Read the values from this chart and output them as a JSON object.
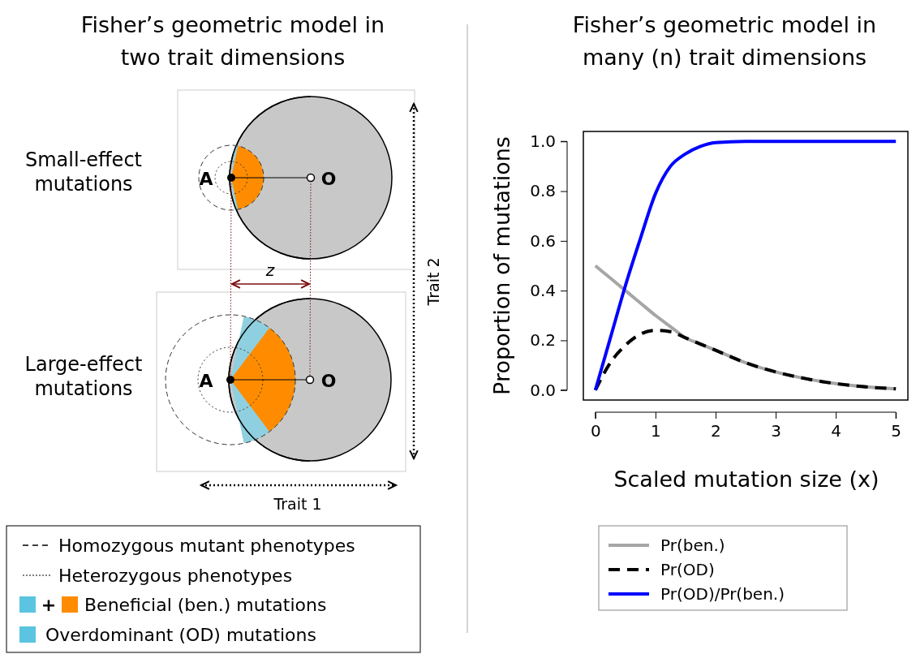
{
  "chart_data": [
    {
      "type": "other",
      "title": "Fisher’s geometric model in two trait dimensions",
      "annotations": [
        "Small-effect mutations",
        "Large-effect mutations",
        "A",
        "O",
        "A",
        "O",
        "z",
        "Trait 1",
        "Trait 2",
        "Homozygous mutant phenotypes",
        "Heterozygous phenotypes",
        "+",
        "Beneficial (ben.) mutations",
        "Overdominant (OD) mutations"
      ]
    },
    {
      "type": "line",
      "title": "Fisher’s geometric model in many (n) trait dimensions",
      "xlabel": "Scaled mutation size (x)",
      "ylabel": "Proportion of mutations",
      "xlim": [
        -0.2,
        5.2
      ],
      "ylim": [
        -0.04,
        1.04
      ],
      "xticks": [
        0,
        1,
        2,
        3,
        4,
        5
      ],
      "yticks": [
        {
          "value": 0,
          "label": "0.0"
        },
        {
          "value": 0.2,
          "label": "0.2"
        },
        {
          "value": 0.4,
          "label": "0.4"
        },
        {
          "value": 0.6,
          "label": "0.6"
        },
        {
          "value": 0.8,
          "label": "0.8"
        },
        {
          "value": 1,
          "label": "1.0"
        }
      ],
      "legend": "bottom",
      "marker": "none",
      "x": [
        0,
        0.25,
        0.5,
        0.75,
        1,
        1.25,
        1.5,
        1.75,
        2,
        2.5,
        3,
        3.5,
        4,
        4.5,
        5
      ],
      "series": [
        {
          "name": "Pr(ben.)",
          "color": "#a6a6a6",
          "line_style": "solid",
          "values": [
            0.5,
            0.45,
            0.4,
            0.35,
            0.3,
            0.255,
            0.21,
            0.185,
            0.16,
            0.11,
            0.073,
            0.046,
            0.026,
            0.013,
            0.005
          ]
        },
        {
          "name": "Pr(OD)",
          "color": "#000000",
          "line_style": "dashed",
          "values": [
            0,
            0.11,
            0.18,
            0.225,
            0.24,
            0.235,
            0.21,
            0.185,
            0.16,
            0.11,
            0.073,
            0.046,
            0.026,
            0.013,
            0.005
          ]
        },
        {
          "name": "Pr(OD)/Pr(ben.)",
          "color": "#0000ff",
          "line_style": "solid",
          "values": [
            0,
            0.21,
            0.42,
            0.61,
            0.79,
            0.9,
            0.95,
            0.98,
            0.995,
            1,
            1,
            1,
            1,
            1,
            1
          ]
        }
      ]
    }
  ]
}
